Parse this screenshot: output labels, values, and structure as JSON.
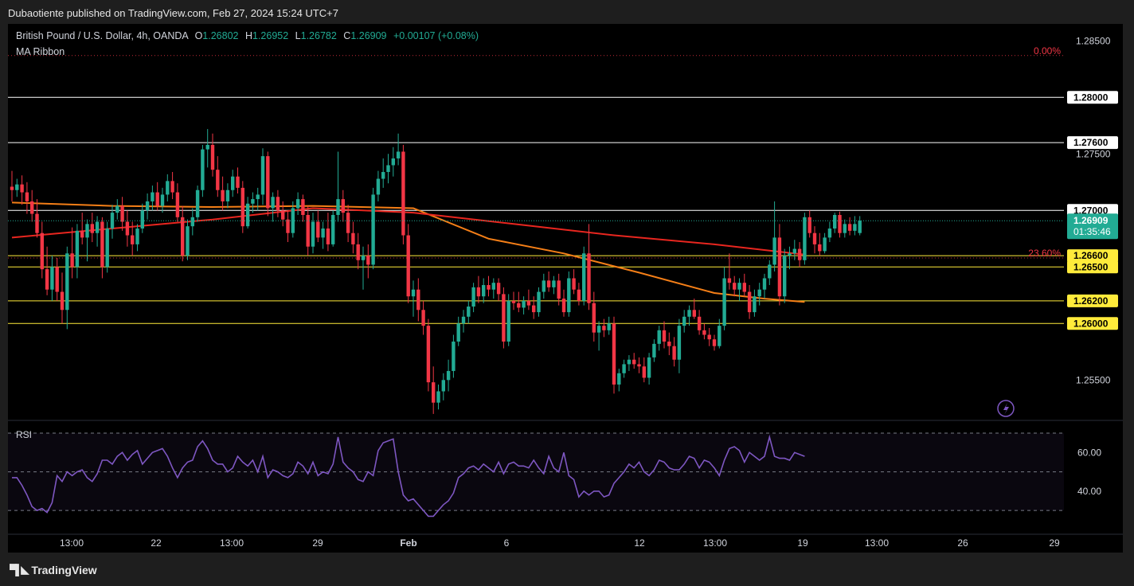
{
  "header": {
    "published": "Dubaotiente published on TradingView.com, Feb 27, 2024 15:24 UTC+7"
  },
  "legend": {
    "symbol": "British Pound / U.S. Dollar, 4h, OANDA",
    "o_label": "O",
    "o": "1.26802",
    "h_label": "H",
    "h": "1.26952",
    "l_label": "L",
    "l": "1.26782",
    "c_label": "C",
    "c": "1.26909",
    "change": "+0.00107 (+0.08%)",
    "indicator": "MA Ribbon"
  },
  "rsi": {
    "label": "RSI"
  },
  "footer": {
    "brand": "TradingView"
  },
  "colors": {
    "up": "#22ab94",
    "down": "#f23645",
    "ma_red": "#e8261f",
    "ma_orange": "#f57f17",
    "rsi": "#7e57c2",
    "fib": "#f23645",
    "zone": "#ffeb3b"
  },
  "chart_data": {
    "type": "candlestick",
    "symbol": "GBPUSD",
    "timeframe": "4h",
    "ylim": [
      1.2515,
      1.2865
    ],
    "price_ticks": [
      "1.28500",
      "1.27500",
      "1.25500"
    ],
    "current_price": "1.26909",
    "countdown": "01:35:46",
    "horizontal_levels": [
      {
        "price": 1.28,
        "label": "1.28000",
        "color": "white"
      },
      {
        "price": 1.276,
        "label": "1.27600",
        "color": "white"
      },
      {
        "price": 1.27,
        "label": "1.27000",
        "color": "white"
      },
      {
        "price": 1.266,
        "label": "1.26600",
        "color": "yellow"
      },
      {
        "price": 1.265,
        "label": "1.26500",
        "color": "yellow"
      },
      {
        "price": 1.262,
        "label": "1.26200",
        "color": "yellow"
      },
      {
        "price": 1.26,
        "label": "1.26000",
        "color": "yellow"
      }
    ],
    "fib_levels": [
      {
        "label": "0.00%",
        "price": 1.2837
      },
      {
        "label": "23.60%",
        "price": 1.2658
      }
    ],
    "x_ticks": [
      "13:00",
      "22",
      "13:00",
      "29",
      "Feb",
      "6",
      "12",
      "13:00",
      "19",
      "13:00",
      "26",
      "29"
    ],
    "ohlc": [
      [
        1.2721,
        1.2735,
        1.2708,
        1.2718
      ],
      [
        1.2718,
        1.2728,
        1.2712,
        1.2723
      ],
      [
        1.2723,
        1.2731,
        1.2705,
        1.2716
      ],
      [
        1.2716,
        1.2725,
        1.2697,
        1.2708
      ],
      [
        1.2708,
        1.2718,
        1.269,
        1.2697
      ],
      [
        1.2697,
        1.271,
        1.2676,
        1.268
      ],
      [
        1.268,
        1.269,
        1.264,
        1.2648
      ],
      [
        1.2648,
        1.2668,
        1.2625,
        1.263
      ],
      [
        1.263,
        1.266,
        1.262,
        1.265
      ],
      [
        1.265,
        1.2658,
        1.262,
        1.2628
      ],
      [
        1.2628,
        1.2645,
        1.26,
        1.2612
      ],
      [
        1.2612,
        1.2668,
        1.2595,
        1.2662
      ],
      [
        1.2662,
        1.2685,
        1.264,
        1.265
      ],
      [
        1.265,
        1.2688,
        1.264,
        1.2682
      ],
      [
        1.2682,
        1.2698,
        1.267,
        1.2676
      ],
      [
        1.2676,
        1.2692,
        1.2655,
        1.2688
      ],
      [
        1.2688,
        1.2698,
        1.2672,
        1.268
      ],
      [
        1.268,
        1.2695,
        1.2668,
        1.269
      ],
      [
        1.269,
        1.2694,
        1.264,
        1.265
      ],
      [
        1.265,
        1.269,
        1.2645,
        1.2684
      ],
      [
        1.2684,
        1.2705,
        1.2675,
        1.2698
      ],
      [
        1.2698,
        1.271,
        1.2692,
        1.2704
      ],
      [
        1.2704,
        1.2712,
        1.2682,
        1.269
      ],
      [
        1.269,
        1.27,
        1.2668,
        1.2678
      ],
      [
        1.2678,
        1.269,
        1.266,
        1.267
      ],
      [
        1.267,
        1.2688,
        1.2664,
        1.2684
      ],
      [
        1.2684,
        1.2706,
        1.268,
        1.27
      ],
      [
        1.27,
        1.2715,
        1.2692,
        1.2708
      ],
      [
        1.2708,
        1.2722,
        1.27,
        1.2716
      ],
      [
        1.2716,
        1.2725,
        1.27,
        1.2704
      ],
      [
        1.2704,
        1.272,
        1.2698,
        1.2714
      ],
      [
        1.2714,
        1.2732,
        1.2708,
        1.2726
      ],
      [
        1.2726,
        1.2734,
        1.271,
        1.2716
      ],
      [
        1.2716,
        1.2724,
        1.269,
        1.2694
      ],
      [
        1.2694,
        1.2704,
        1.2655,
        1.266
      ],
      [
        1.266,
        1.2692,
        1.2656,
        1.2686
      ],
      [
        1.2686,
        1.2702,
        1.2678,
        1.2694
      ],
      [
        1.2694,
        1.2722,
        1.269,
        1.2718
      ],
      [
        1.2718,
        1.2758,
        1.2712,
        1.2754
      ],
      [
        1.2754,
        1.2772,
        1.2738,
        1.2758
      ],
      [
        1.2758,
        1.2768,
        1.273,
        1.2736
      ],
      [
        1.2736,
        1.2748,
        1.2712,
        1.2718
      ],
      [
        1.2718,
        1.273,
        1.27,
        1.2708
      ],
      [
        1.2708,
        1.2724,
        1.2702,
        1.2718
      ],
      [
        1.2718,
        1.2736,
        1.2712,
        1.273
      ],
      [
        1.273,
        1.2738,
        1.2715,
        1.272
      ],
      [
        1.272,
        1.2726,
        1.268,
        1.2686
      ],
      [
        1.2686,
        1.2712,
        1.2684,
        1.2706
      ],
      [
        1.2706,
        1.2716,
        1.2698,
        1.271
      ],
      [
        1.271,
        1.272,
        1.27,
        1.2714
      ],
      [
        1.2714,
        1.2755,
        1.2705,
        1.2748
      ],
      [
        1.2748,
        1.2752,
        1.2695,
        1.2702
      ],
      [
        1.2702,
        1.2716,
        1.269,
        1.2712
      ],
      [
        1.2712,
        1.2718,
        1.2694,
        1.27
      ],
      [
        1.27,
        1.2708,
        1.2686,
        1.2692
      ],
      [
        1.2692,
        1.27,
        1.2672,
        1.268
      ],
      [
        1.268,
        1.2708,
        1.2676,
        1.2702
      ],
      [
        1.2702,
        1.2716,
        1.2696,
        1.271
      ],
      [
        1.271,
        1.2714,
        1.269,
        1.2696
      ],
      [
        1.2696,
        1.2704,
        1.266,
        1.2668
      ],
      [
        1.2668,
        1.2698,
        1.2662,
        1.269
      ],
      [
        1.269,
        1.27,
        1.2672,
        1.2676
      ],
      [
        1.2676,
        1.269,
        1.2666,
        1.2684
      ],
      [
        1.2684,
        1.2698,
        1.2664,
        1.267
      ],
      [
        1.267,
        1.27,
        1.2668,
        1.2696
      ],
      [
        1.2696,
        1.2752,
        1.269,
        1.271
      ],
      [
        1.271,
        1.2718,
        1.269,
        1.2698
      ],
      [
        1.2698,
        1.2705,
        1.2672,
        1.268
      ],
      [
        1.268,
        1.269,
        1.2662,
        1.267
      ],
      [
        1.267,
        1.268,
        1.2648,
        1.2656
      ],
      [
        1.2656,
        1.2668,
        1.263,
        1.266
      ],
      [
        1.266,
        1.267,
        1.264,
        1.2652
      ],
      [
        1.2652,
        1.272,
        1.2648,
        1.2714
      ],
      [
        1.2714,
        1.2735,
        1.2708,
        1.2728
      ],
      [
        1.2728,
        1.2746,
        1.272,
        1.2734
      ],
      [
        1.2734,
        1.275,
        1.2724,
        1.274
      ],
      [
        1.274,
        1.2756,
        1.273,
        1.2746
      ],
      [
        1.2746,
        1.2768,
        1.274,
        1.2752
      ],
      [
        1.2752,
        1.2758,
        1.267,
        1.2678
      ],
      [
        1.2678,
        1.2688,
        1.2618,
        1.2624
      ],
      [
        1.2624,
        1.2638,
        1.2606,
        1.263
      ],
      [
        1.263,
        1.264,
        1.2602,
        1.2612
      ],
      [
        1.2612,
        1.262,
        1.259,
        1.2598
      ],
      [
        1.2598,
        1.2604,
        1.254,
        1.2548
      ],
      [
        1.2548,
        1.2562,
        1.252,
        1.253
      ],
      [
        1.253,
        1.2546,
        1.2524,
        1.254
      ],
      [
        1.254,
        1.2556,
        1.2532,
        1.255
      ],
      [
        1.255,
        1.2568,
        1.254,
        1.2558
      ],
      [
        1.2558,
        1.259,
        1.2552,
        1.2584
      ],
      [
        1.2584,
        1.2606,
        1.258,
        1.26
      ],
      [
        1.26,
        1.2612,
        1.2592,
        1.2606
      ],
      [
        1.2606,
        1.262,
        1.26,
        1.2615
      ],
      [
        1.2615,
        1.2636,
        1.261,
        1.2632
      ],
      [
        1.2632,
        1.2642,
        1.2618,
        1.2624
      ],
      [
        1.2624,
        1.264,
        1.2618,
        1.2634
      ],
      [
        1.2634,
        1.2642,
        1.2624,
        1.263
      ],
      [
        1.263,
        1.264,
        1.2622,
        1.2636
      ],
      [
        1.2636,
        1.264,
        1.262,
        1.2626
      ],
      [
        1.2626,
        1.2632,
        1.2578,
        1.2584
      ],
      [
        1.2584,
        1.2626,
        1.258,
        1.262
      ],
      [
        1.262,
        1.2628,
        1.2612,
        1.2618
      ],
      [
        1.2618,
        1.2628,
        1.261,
        1.2614
      ],
      [
        1.2614,
        1.2624,
        1.2608,
        1.262
      ],
      [
        1.262,
        1.263,
        1.2612,
        1.2616
      ],
      [
        1.2616,
        1.2624,
        1.2604,
        1.261
      ],
      [
        1.261,
        1.2632,
        1.2606,
        1.2628
      ],
      [
        1.2628,
        1.2644,
        1.2622,
        1.2638
      ],
      [
        1.2638,
        1.2646,
        1.2628,
        1.2632
      ],
      [
        1.2632,
        1.2642,
        1.2626,
        1.2638
      ],
      [
        1.2638,
        1.2644,
        1.2616,
        1.2622
      ],
      [
        1.2622,
        1.263,
        1.2606,
        1.261
      ],
      [
        1.261,
        1.2646,
        1.2606,
        1.264
      ],
      [
        1.264,
        1.2648,
        1.2626,
        1.263
      ],
      [
        1.263,
        1.2636,
        1.2616,
        1.262
      ],
      [
        1.262,
        1.2668,
        1.2616,
        1.2662
      ],
      [
        1.2662,
        1.2688,
        1.2612,
        1.2618
      ],
      [
        1.2618,
        1.2628,
        1.2584,
        1.2592
      ],
      [
        1.2592,
        1.2602,
        1.2576,
        1.2598
      ],
      [
        1.2598,
        1.2604,
        1.2588,
        1.2594
      ],
      [
        1.2594,
        1.2606,
        1.259,
        1.26
      ],
      [
        1.26,
        1.2606,
        1.2538,
        1.2546
      ],
      [
        1.2546,
        1.256,
        1.254,
        1.2556
      ],
      [
        1.2556,
        1.2568,
        1.2552,
        1.2564
      ],
      [
        1.2564,
        1.2572,
        1.2558,
        1.2568
      ],
      [
        1.2568,
        1.2574,
        1.256,
        1.2564
      ],
      [
        1.2564,
        1.257,
        1.2556,
        1.2562
      ],
      [
        1.2562,
        1.257,
        1.2548,
        1.2552
      ],
      [
        1.2552,
        1.2574,
        1.2546,
        1.257
      ],
      [
        1.257,
        1.2586,
        1.2566,
        1.2582
      ],
      [
        1.2582,
        1.2598,
        1.2576,
        1.2594
      ],
      [
        1.2594,
        1.2602,
        1.2578,
        1.2584
      ],
      [
        1.2584,
        1.2592,
        1.2572,
        1.258
      ],
      [
        1.258,
        1.2588,
        1.2562,
        1.2568
      ],
      [
        1.2568,
        1.2604,
        1.2556,
        1.2598
      ],
      [
        1.2598,
        1.2612,
        1.2592,
        1.2606
      ],
      [
        1.2606,
        1.2616,
        1.2598,
        1.2612
      ],
      [
        1.2612,
        1.2622,
        1.2604,
        1.2606
      ],
      [
        1.2606,
        1.2612,
        1.259,
        1.2594
      ],
      [
        1.2594,
        1.26,
        1.2586,
        1.259
      ],
      [
        1.259,
        1.2596,
        1.258,
        1.2586
      ],
      [
        1.2586,
        1.259,
        1.2576,
        1.258
      ],
      [
        1.258,
        1.2604,
        1.2578,
        1.2598
      ],
      [
        1.2598,
        1.265,
        1.2594,
        1.264
      ],
      [
        1.264,
        1.2662,
        1.263,
        1.2636
      ],
      [
        1.2636,
        1.2642,
        1.2624,
        1.263
      ],
      [
        1.263,
        1.264,
        1.262,
        1.2636
      ],
      [
        1.2636,
        1.2644,
        1.2624,
        1.2628
      ],
      [
        1.2628,
        1.2634,
        1.2604,
        1.261
      ],
      [
        1.261,
        1.263,
        1.2606,
        1.2624
      ],
      [
        1.2624,
        1.2636,
        1.2616,
        1.263
      ],
      [
        1.263,
        1.2644,
        1.2622,
        1.264
      ],
      [
        1.264,
        1.2656,
        1.2634,
        1.2652
      ],
      [
        1.2652,
        1.2708,
        1.2646,
        1.2676
      ],
      [
        1.2676,
        1.2688,
        1.2616,
        1.2624
      ],
      [
        1.2624,
        1.2666,
        1.2618,
        1.266
      ],
      [
        1.266,
        1.2668,
        1.2648,
        1.2662
      ],
      [
        1.2662,
        1.2674,
        1.2656,
        1.2666
      ],
      [
        1.2666,
        1.2672,
        1.265,
        1.2656
      ],
      [
        1.2656,
        1.2698,
        1.2652,
        1.2694
      ],
      [
        1.2694,
        1.27,
        1.2676,
        1.268
      ],
      [
        1.268,
        1.2686,
        1.2662,
        1.267
      ],
      [
        1.267,
        1.268,
        1.266,
        1.2664
      ],
      [
        1.2664,
        1.268,
        1.2662,
        1.2676
      ],
      [
        1.2676,
        1.269,
        1.2672,
        1.2684
      ],
      [
        1.2684,
        1.2698,
        1.268,
        1.2696
      ],
      [
        1.2696,
        1.2699,
        1.2676,
        1.268
      ],
      [
        1.268,
        1.2692,
        1.2676,
        1.2688
      ],
      [
        1.2688,
        1.2694,
        1.2678,
        1.2682
      ],
      [
        1.2682,
        1.2695,
        1.2678,
        1.2688
      ],
      [
        1.268,
        1.2695,
        1.2678,
        1.2691
      ]
    ],
    "ma_red": [
      [
        0,
        1.2676
      ],
      [
        20,
        1.2684
      ],
      [
        40,
        1.2692
      ],
      [
        60,
        1.2702
      ],
      [
        80,
        1.2698
      ],
      [
        100,
        1.2688
      ],
      [
        120,
        1.2678
      ],
      [
        140,
        1.267
      ],
      [
        158,
        1.2661
      ]
    ],
    "ma_orange": [
      [
        0,
        1.2707
      ],
      [
        20,
        1.2704
      ],
      [
        40,
        1.2703
      ],
      [
        60,
        1.2704
      ],
      [
        80,
        1.2702
      ],
      [
        95,
        1.2675
      ],
      [
        110,
        1.2662
      ],
      [
        125,
        1.2645
      ],
      [
        140,
        1.2627
      ],
      [
        150,
        1.2622
      ],
      [
        158,
        1.2619
      ]
    ],
    "rsi_axis": [
      "60.00",
      "40.00"
    ],
    "rsi_values": [
      47,
      47,
      43,
      38,
      32,
      30,
      31,
      29,
      34,
      48,
      45,
      50,
      48,
      50,
      51,
      47,
      45,
      49,
      56,
      56,
      54,
      58,
      60,
      56,
      59,
      61,
      54,
      57,
      60,
      61,
      62,
      58,
      52,
      47,
      52,
      55,
      56,
      63,
      66,
      62,
      56,
      54,
      54,
      50,
      52,
      58,
      55,
      53,
      56,
      50,
      58,
      47,
      51,
      50,
      48,
      47,
      49,
      55,
      53,
      49,
      55,
      48,
      50,
      49,
      54,
      68,
      55,
      52,
      50,
      46,
      45,
      50,
      48,
      61,
      65,
      66,
      67,
      50,
      38,
      35,
      36,
      33,
      30,
      27,
      27,
      30,
      33,
      35,
      39,
      47,
      49,
      52,
      53,
      51,
      54,
      52,
      50,
      55,
      49,
      54,
      55,
      53,
      53,
      52,
      56,
      52,
      49,
      58,
      52,
      50,
      60,
      48,
      46,
      37,
      40,
      38,
      40,
      40,
      37,
      38,
      44,
      47,
      50,
      54,
      52,
      55,
      50,
      48,
      51,
      56,
      55,
      52,
      51,
      51,
      54,
      58,
      57,
      52,
      56,
      55,
      52,
      48,
      56,
      62,
      63,
      61,
      55,
      60,
      58,
      56,
      58,
      68,
      58,
      57,
      57,
      56,
      60,
      59,
      58
    ]
  }
}
